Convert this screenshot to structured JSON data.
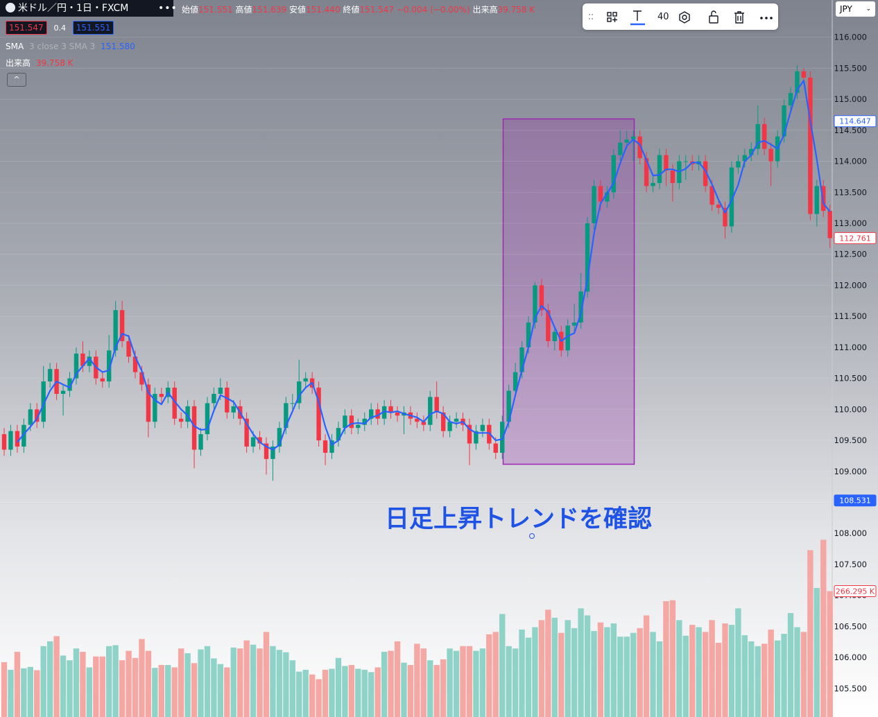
{
  "header": {
    "symbol": "米ドル／円・1日・FXCM",
    "ohlc": [
      {
        "label": "始値",
        "value": "151.551"
      },
      {
        "label": "高値",
        "value": "151.639"
      },
      {
        "label": "安値",
        "value": "151.440"
      },
      {
        "label": "終値",
        "value": "151.547"
      }
    ],
    "change": "−0.004 (−0.00%)",
    "volume_label": "出来高",
    "volume_value": "39.758 K",
    "bid": "151.547",
    "spread": "0.4",
    "ask": "151.551",
    "indicators": [
      {
        "name": "SMA",
        "params": "3 close 3 SMA 3",
        "value": "151.580"
      },
      {
        "name": "出来高",
        "value": "39.758 K"
      }
    ]
  },
  "toolbar": {
    "font_size": "40",
    "currency": "JPY"
  },
  "chart_data": {
    "type": "candlestick",
    "annotation": "日足上昇トレンドを確認",
    "up_color": "#089981",
    "down_color": "#f23645",
    "volume_up_color": "#8fd3c8",
    "volume_down_color": "#f4a7a3",
    "grid": true,
    "ylim": [
      105.04,
      116.6
    ],
    "yticks": [
      {
        "value": 105.5,
        "label": "105.500"
      },
      {
        "value": 106,
        "label": "106.000"
      },
      {
        "value": 106.5,
        "label": "106.500"
      },
      {
        "value": 107,
        "label": "107.000"
      },
      {
        "value": 107.5,
        "label": "107.500"
      },
      {
        "value": 108,
        "label": "108.000"
      },
      {
        "value": 108.5,
        "label": "108.500"
      },
      {
        "value": 109,
        "label": "109.000"
      },
      {
        "value": 109.5,
        "label": "109.500"
      },
      {
        "value": 110,
        "label": "110.000"
      },
      {
        "value": 110.5,
        "label": "110.500"
      },
      {
        "value": 111,
        "label": "111.000"
      },
      {
        "value": 111.5,
        "label": "111.500"
      },
      {
        "value": 112,
        "label": "112.000"
      },
      {
        "value": 112.5,
        "label": "112.500"
      },
      {
        "value": 113,
        "label": "113.000"
      },
      {
        "value": 113.5,
        "label": "113.500"
      },
      {
        "value": 114,
        "label": "114.000"
      },
      {
        "value": 114.5,
        "label": "114.500"
      },
      {
        "value": 115,
        "label": "115.000"
      },
      {
        "value": 115.5,
        "label": "115.500"
      },
      {
        "value": 116,
        "label": "116.000"
      }
    ],
    "price_labels": [
      {
        "value": 114.647,
        "label": "114.647",
        "color": "#2962ff",
        "style": "outline"
      },
      {
        "value": 112.761,
        "label": "112.761",
        "color": "#f23645",
        "style": "outline"
      },
      {
        "value": 108.531,
        "label": "108.531",
        "color": "#2962ff",
        "style": "filled"
      }
    ],
    "volume_label": {
      "value": 266.295,
      "label": "266.295 K",
      "color": "#f23645"
    },
    "volume_ylim": [
      0,
      380
    ],
    "open": [
      109.6,
      109.35,
      109.65,
      109.4,
      109.75,
      110.0,
      109.8,
      110.45,
      110.65,
      110.25,
      110.3,
      110.5,
      110.9,
      110.7,
      110.85,
      110.5,
      110.45,
      110.95,
      111.6,
      111.1,
      110.85,
      110.6,
      110.4,
      109.8,
      110.25,
      110.2,
      110.35,
      109.85,
      109.8,
      110.05,
      109.35,
      109.6,
      110.1,
      110.25,
      110.35,
      109.95,
      110.05,
      109.85,
      109.4,
      109.55,
      109.45,
      109.2,
      109.4,
      109.7,
      110.1,
      110.1,
      110.45,
      110.5,
      110.35,
      109.5,
      109.3,
      109.5,
      109.7,
      109.9,
      109.7,
      109.75,
      109.85,
      110.0,
      109.85,
      110.05,
      109.95,
      109.9,
      109.95,
      109.85,
      109.8,
      109.75,
      110.2,
      109.95,
      109.65,
      109.8,
      109.85,
      109.75,
      109.45,
      109.65,
      109.75,
      109.45,
      109.3,
      109.8,
      110.3,
      110.6,
      111.0,
      111.4,
      112.0,
      111.6,
      111.1,
      111.25,
      110.95,
      111.35,
      111.4,
      111.9,
      113.0,
      113.6,
      113.35,
      113.5,
      114.1,
      114.3,
      114.35,
      114.4,
      114.05,
      113.6,
      113.65,
      114.1,
      113.85,
      113.65,
      114.0,
      114.0,
      113.95,
      114.0,
      113.6,
      113.3,
      113.25,
      112.95,
      113.9,
      114.0,
      114.1,
      114.2,
      114.6,
      114.2,
      114.0,
      114.4,
      114.9,
      115.1,
      115.45,
      115.35,
      113.15,
      113.6,
      113.2
    ],
    "high": [
      109.7,
      109.75,
      109.75,
      109.85,
      110.1,
      110.1,
      110.7,
      110.75,
      110.75,
      110.4,
      110.6,
      111.0,
      111.1,
      110.95,
      110.95,
      110.6,
      111.2,
      111.75,
      111.75,
      111.2,
      110.95,
      110.7,
      110.5,
      110.35,
      110.35,
      110.45,
      110.45,
      109.95,
      110.15,
      110.15,
      109.7,
      110.2,
      110.35,
      110.5,
      110.45,
      110.15,
      110.15,
      109.95,
      109.65,
      109.65,
      109.55,
      109.5,
      109.8,
      110.2,
      110.25,
      110.8,
      110.6,
      110.6,
      110.45,
      109.6,
      109.6,
      109.8,
      110.0,
      110.0,
      109.85,
      109.95,
      110.1,
      110.1,
      110.15,
      110.15,
      110.05,
      110.05,
      110.05,
      109.95,
      109.9,
      110.3,
      110.45,
      110.05,
      109.9,
      109.95,
      109.95,
      109.85,
      109.75,
      109.85,
      109.85,
      109.55,
      109.9,
      110.4,
      110.75,
      111.1,
      111.5,
      112.05,
      112.1,
      111.7,
      111.35,
      111.35,
      111.45,
      111.7,
      112.2,
      113.1,
      113.7,
      113.7,
      113.6,
      114.2,
      114.5,
      114.5,
      114.5,
      114.5,
      114.15,
      113.8,
      114.2,
      114.2,
      113.95,
      114.1,
      114.1,
      114.1,
      114.1,
      114.1,
      113.7,
      113.4,
      113.35,
      114.0,
      114.1,
      114.2,
      114.3,
      114.9,
      114.7,
      114.3,
      114.5,
      115.0,
      115.2,
      115.55,
      115.5,
      115.45,
      113.7,
      113.7,
      113.3
    ],
    "low": [
      109.25,
      109.25,
      109.3,
      109.3,
      109.65,
      109.7,
      109.7,
      110.35,
      110.15,
      109.9,
      110.2,
      110.4,
      110.6,
      110.6,
      110.4,
      110.35,
      110.35,
      110.85,
      111.0,
      110.75,
      110.5,
      110.3,
      109.55,
      109.7,
      110.1,
      110.1,
      109.75,
      109.7,
      109.7,
      109.05,
      109.25,
      109.5,
      110.0,
      110.15,
      109.85,
      109.85,
      109.75,
      109.3,
      109.3,
      109.35,
      108.95,
      108.85,
      109.3,
      109.6,
      110.0,
      110.0,
      110.35,
      110.25,
      109.4,
      109.1,
      109.2,
      109.4,
      109.6,
      109.6,
      109.6,
      109.65,
      109.75,
      109.75,
      109.75,
      109.85,
      109.8,
      109.6,
      109.75,
      109.7,
      109.65,
      109.65,
      109.85,
      109.55,
      109.55,
      109.7,
      109.65,
      109.1,
      109.35,
      109.55,
      109.35,
      109.2,
      109.2,
      109.7,
      110.2,
      110.5,
      110.9,
      111.3,
      111.5,
      111.0,
      110.95,
      110.85,
      110.85,
      111.25,
      111.3,
      111.8,
      112.9,
      113.2,
      113.25,
      113.4,
      114.0,
      114.2,
      114.0,
      113.95,
      113.5,
      113.5,
      113.55,
      113.6,
      113.35,
      113.55,
      113.7,
      113.85,
      113.85,
      113.5,
      113.2,
      113.15,
      112.75,
      112.85,
      113.8,
      113.9,
      114.0,
      114.1,
      114.1,
      113.6,
      113.9,
      114.3,
      114.8,
      115.0,
      115.25,
      113.05,
      112.95,
      113.1,
      112.6
    ],
    "close": [
      109.35,
      109.65,
      109.4,
      109.75,
      110.0,
      109.8,
      110.45,
      110.65,
      110.25,
      110.3,
      110.5,
      110.9,
      110.7,
      110.85,
      110.5,
      110.45,
      110.95,
      111.6,
      111.1,
      110.85,
      110.6,
      110.4,
      109.8,
      110.25,
      110.2,
      110.35,
      109.85,
      109.8,
      110.05,
      109.35,
      109.6,
      110.1,
      110.25,
      110.35,
      109.95,
      110.05,
      109.85,
      109.4,
      109.55,
      109.45,
      109.2,
      109.4,
      109.7,
      110.1,
      110.1,
      110.45,
      110.5,
      110.35,
      109.5,
      109.3,
      109.5,
      109.7,
      109.9,
      109.7,
      109.75,
      109.85,
      110.0,
      109.85,
      110.05,
      109.95,
      109.9,
      109.95,
      109.85,
      109.8,
      109.75,
      110.2,
      109.95,
      109.65,
      109.8,
      109.85,
      109.75,
      109.45,
      109.65,
      109.75,
      109.45,
      109.3,
      109.8,
      110.3,
      110.6,
      111.0,
      111.4,
      112.0,
      111.6,
      111.1,
      111.25,
      110.95,
      111.35,
      111.4,
      111.9,
      113.0,
      113.6,
      113.35,
      113.5,
      114.1,
      114.3,
      114.35,
      114.4,
      114.05,
      113.6,
      113.65,
      114.1,
      113.85,
      113.65,
      114.0,
      114.0,
      113.95,
      114.0,
      113.6,
      113.3,
      113.25,
      112.95,
      113.9,
      114.0,
      114.1,
      114.2,
      114.6,
      114.2,
      114.0,
      114.4,
      114.9,
      115.1,
      115.45,
      115.35,
      113.15,
      113.6,
      113.2,
      112.76
    ],
    "sma": {
      "color": "#2962ff",
      "values": [
        null,
        null,
        109.47,
        109.6,
        109.72,
        109.85,
        110.08,
        110.3,
        110.45,
        110.4,
        110.35,
        110.57,
        110.7,
        110.82,
        110.68,
        110.6,
        110.63,
        111.0,
        111.22,
        111.18,
        110.85,
        110.62,
        110.27,
        110.15,
        110.08,
        110.27,
        110.13,
        110.0,
        109.9,
        109.73,
        109.67,
        109.68,
        109.98,
        110.23,
        110.18,
        110.12,
        109.95,
        109.77,
        109.6,
        109.47,
        109.4,
        109.35,
        109.43,
        109.73,
        109.97,
        110.22,
        110.35,
        110.43,
        110.12,
        109.72,
        109.43,
        109.5,
        109.7,
        109.77,
        109.78,
        109.77,
        109.87,
        109.9,
        109.97,
        109.95,
        109.97,
        109.93,
        109.9,
        109.87,
        109.8,
        109.92,
        109.97,
        109.93,
        109.8,
        109.77,
        109.8,
        109.68,
        109.62,
        109.62,
        109.62,
        109.5,
        109.52,
        109.8,
        110.23,
        110.63,
        111.0,
        111.47,
        111.67,
        111.57,
        111.32,
        111.1,
        111.18,
        111.23,
        111.55,
        112.1,
        112.83,
        113.32,
        113.48,
        113.65,
        113.97,
        114.25,
        114.35,
        114.27,
        114.02,
        113.77,
        113.78,
        113.87,
        113.87,
        113.83,
        113.88,
        113.98,
        113.98,
        113.85,
        113.63,
        113.38,
        113.17,
        113.37,
        113.62,
        114.0,
        114.1,
        114.3,
        114.33,
        114.27,
        114.2,
        114.43,
        114.8,
        115.15,
        115.3,
        114.65,
        114.03,
        113.32,
        113.19
      ]
    },
    "volume": [
      116,
      100,
      138,
      103,
      106,
      99,
      150,
      160,
      171,
      130,
      120,
      145,
      138,
      105,
      128,
      128,
      150,
      152,
      120,
      140,
      125,
      165,
      140,
      104,
      110,
      110,
      105,
      145,
      135,
      114,
      143,
      150,
      124,
      112,
      105,
      147,
      145,
      162,
      153,
      145,
      180,
      150,
      142,
      137,
      120,
      96,
      100,
      90,
      80,
      100,
      102,
      125,
      108,
      110,
      102,
      100,
      95,
      105,
      138,
      140,
      160,
      115,
      110,
      155,
      145,
      120,
      110,
      122,
      145,
      140,
      150,
      150,
      140,
      145,
      175,
      180,
      218,
      150,
      145,
      185,
      168,
      190,
      205,
      227,
      210,
      178,
      205,
      188,
      230,
      215,
      182,
      200,
      190,
      198,
      170,
      170,
      178,
      188,
      215,
      180,
      160,
      245,
      247,
      205,
      172,
      195,
      190,
      180,
      205,
      157,
      198,
      195,
      230,
      173,
      160,
      150,
      155,
      185,
      162,
      176,
      220,
      190,
      180,
      353,
      273,
      375,
      266.295
    ]
  }
}
